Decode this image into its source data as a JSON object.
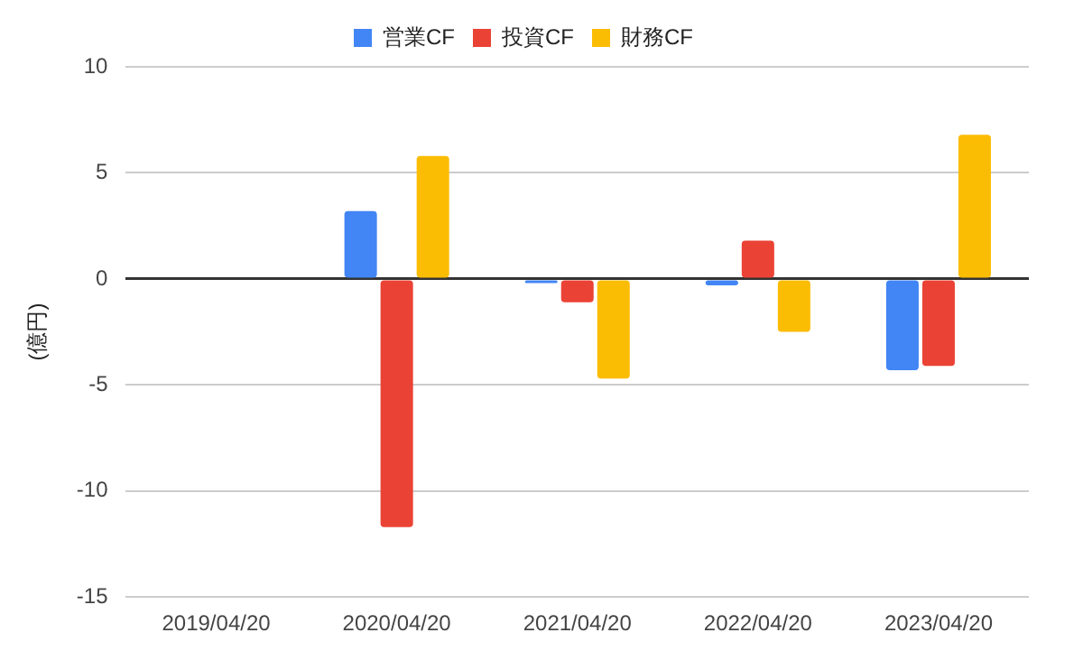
{
  "chart_data": {
    "type": "bar",
    "ylabel": "(億円)",
    "categories": [
      "2019/04/20",
      "2020/04/20",
      "2021/04/20",
      "2022/04/20",
      "2023/04/20"
    ],
    "series": [
      {
        "name": "営業CF",
        "color": "#4285f4",
        "values": [
          null,
          3.2,
          -0.2,
          -0.3,
          -4.3
        ]
      },
      {
        "name": "投資CF",
        "color": "#ea4335",
        "values": [
          null,
          -11.7,
          -1.1,
          1.8,
          -4.1
        ]
      },
      {
        "name": "財務CF",
        "color": "#fbbc04",
        "values": [
          null,
          5.8,
          -4.7,
          -2.5,
          6.8
        ]
      }
    ],
    "ylim": [
      -15,
      10
    ],
    "yticks": [
      -15,
      -10,
      -5,
      0,
      5,
      10
    ],
    "grid": "y",
    "legend": "top"
  }
}
